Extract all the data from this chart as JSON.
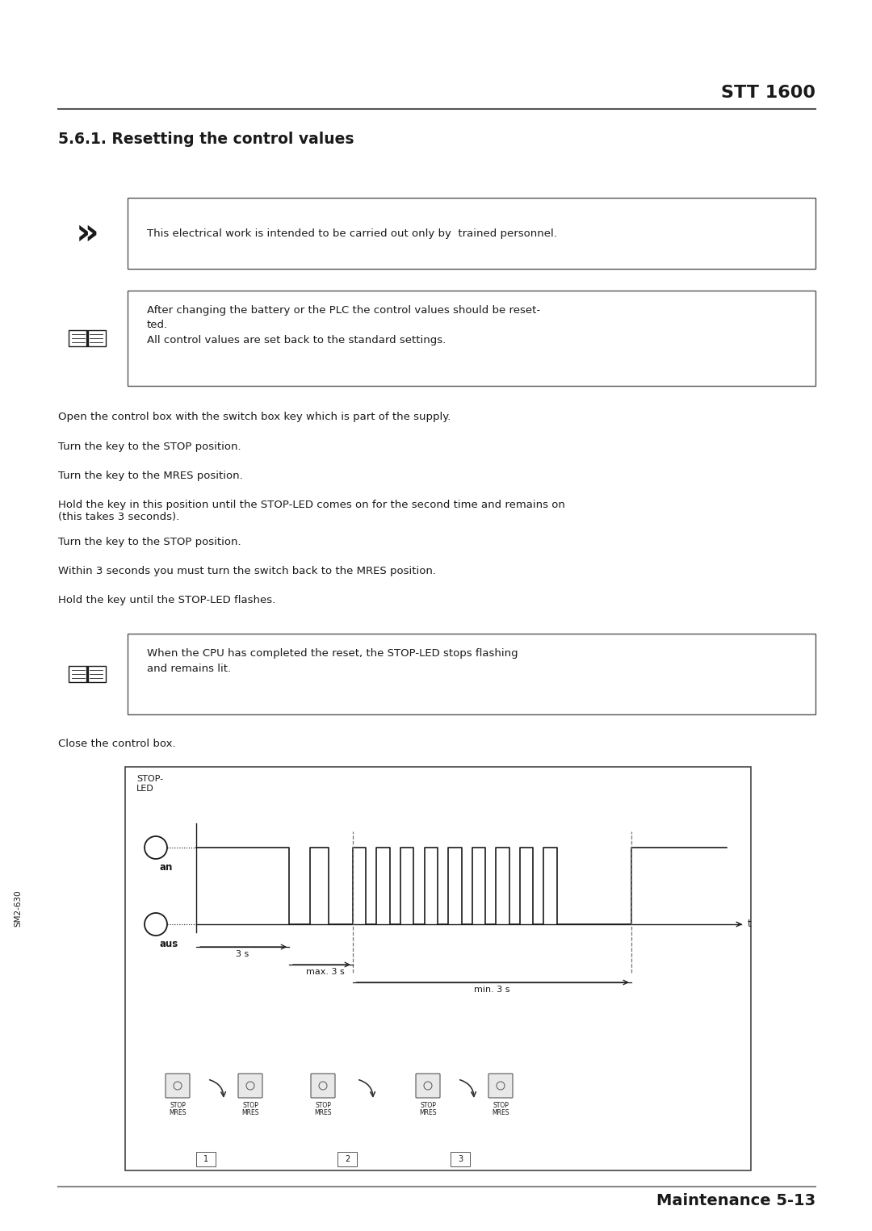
{
  "page_title": "STT 1600",
  "section_title": "5.6.1. Resetting the control values",
  "warning_box_text": "This electrical work is intended to be carried out only by  trained personnel.",
  "note_box_text_line1": "After changing the battery or the PLC the control values should be reset-",
  "note_box_text_line2": "ted.",
  "note_box_text_line3": "All control values are set back to the standard settings.",
  "body_lines": [
    "Open the control box with the switch box key which is part of the supply.",
    "Turn the key to the STOP position.",
    "Turn the key to the MRES position.",
    "Hold the key in this position until the STOP-LED comes on for the second time and remains on\n(this takes 3 seconds).",
    "Turn the key to the STOP position.",
    "Within 3 seconds you must turn the switch back to the MRES position.",
    "Hold the key until the STOP-LED flashes."
  ],
  "cpu_note_line1": "When the CPU has completed the reset, the STOP-LED stops flashing",
  "cpu_note_line2": "and remains lit.",
  "close_text": "Close the control box.",
  "footer_text": "Maintenance 5-13",
  "side_text": "SM2-630",
  "bg_color": "#ffffff",
  "text_color": "#1a1a1a",
  "box_border_color": "#555555",
  "header_line_color": "#555555",
  "footer_line_color": "#888888"
}
